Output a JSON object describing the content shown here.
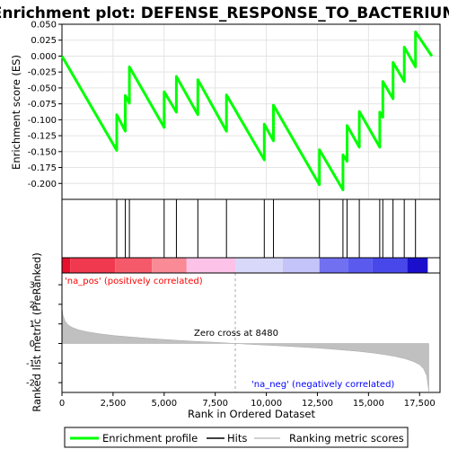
{
  "chart_data": {
    "type": "line",
    "title": "Enrichment plot: DEFENSE_RESPONSE_TO_BACTERIUM",
    "colors": {
      "enrichment_line": "#00ff00",
      "hits": "#000000",
      "ranking_fill": "#c0c0c0",
      "pos_annotation": "#ff0000",
      "neg_annotation": "#0000ff",
      "zero_cross_line": "#aaaaaa"
    },
    "xlabel": "Rank in Ordered Dataset",
    "xlim": [
      0,
      18500
    ],
    "x_ticks": [
      0,
      2500,
      5000,
      7500,
      10000,
      12500,
      15000,
      17500
    ],
    "x_tick_labels": [
      "0",
      "2,500",
      "5,000",
      "7,500",
      "10,000",
      "12,500",
      "15,000",
      "17,500"
    ],
    "es_panel": {
      "ylabel": "Enrichment score (ES)",
      "ylim": [
        -0.225,
        0.05
      ],
      "y_ticks": [
        0.05,
        0.025,
        0.0,
        -0.025,
        -0.05,
        -0.075,
        -0.1,
        -0.125,
        -0.15,
        -0.175,
        -0.2
      ],
      "y_tick_labels": [
        "0.050",
        "0.025",
        "0.000",
        "-0.025",
        "-0.050",
        "-0.075",
        "-0.100",
        "-0.125",
        "-0.150",
        "-0.175",
        "-0.200"
      ],
      "grid": true,
      "series": [
        {
          "name": "Enrichment profile",
          "x": [
            0,
            2680,
            2680,
            3100,
            3100,
            3300,
            3300,
            5000,
            5000,
            5600,
            5600,
            6650,
            6650,
            8050,
            8050,
            9900,
            9900,
            10350,
            10350,
            12600,
            12600,
            13750,
            13750,
            13950,
            13950,
            14550,
            14550,
            15550,
            15550,
            15700,
            15700,
            16200,
            16200,
            16750,
            16750,
            17300,
            17300,
            18100
          ],
          "y": [
            0.0,
            -0.148,
            -0.092,
            -0.118,
            -0.062,
            -0.074,
            -0.017,
            -0.112,
            -0.056,
            -0.088,
            -0.032,
            -0.092,
            -0.037,
            -0.118,
            -0.061,
            -0.163,
            -0.107,
            -0.133,
            -0.077,
            -0.202,
            -0.147,
            -0.21,
            -0.155,
            -0.165,
            -0.109,
            -0.143,
            -0.087,
            -0.143,
            -0.088,
            -0.096,
            -0.04,
            -0.067,
            -0.01,
            -0.04,
            0.014,
            -0.017,
            0.038,
            0.0
          ]
        }
      ]
    },
    "hits": [
      2680,
      3100,
      3300,
      5000,
      5600,
      6650,
      8050,
      9900,
      10350,
      12600,
      13750,
      13950,
      14550,
      15550,
      15700,
      16200,
      16750,
      17300
    ],
    "color_bar": {
      "segments": [
        {
          "end": 400,
          "color": "#e8112d"
        },
        {
          "end": 2600,
          "color": "#f0394f"
        },
        {
          "end": 4400,
          "color": "#f55a6b"
        },
        {
          "end": 6100,
          "color": "#f98a96"
        },
        {
          "end": 8500,
          "color": "#fcc2e8"
        },
        {
          "end": 10800,
          "color": "#d8d8fa"
        },
        {
          "end": 12600,
          "color": "#c4c4fa"
        },
        {
          "end": 14000,
          "color": "#7070f0"
        },
        {
          "end": 15200,
          "color": "#5a5aef"
        },
        {
          "end": 16900,
          "color": "#4848ea"
        },
        {
          "end": 17900,
          "color": "#1a10cc"
        }
      ]
    },
    "rank_panel": {
      "ylabel": "Ranked list metric (PreRanked)",
      "ylim": [
        -2.5,
        3.6
      ],
      "y_ticks": [
        3,
        2,
        1,
        0,
        -1,
        -2
      ],
      "y_tick_labels": [
        "3",
        "2",
        "1",
        "0",
        "-1",
        "-2"
      ],
      "metric_x": [
        0,
        50,
        150,
        300,
        500,
        800,
        1200,
        1800,
        2600,
        3500,
        4500,
        5500,
        6500,
        7500,
        8480,
        9500,
        10500,
        11500,
        12500,
        13500,
        14500,
        15200,
        15800,
        16300,
        16800,
        17200,
        17500,
        17700,
        17850,
        17950
      ],
      "metric_y": [
        1.85,
        1.45,
        1.15,
        0.95,
        0.82,
        0.7,
        0.6,
        0.5,
        0.4,
        0.32,
        0.24,
        0.17,
        0.11,
        0.06,
        0.0,
        -0.06,
        -0.11,
        -0.17,
        -0.23,
        -0.31,
        -0.4,
        -0.48,
        -0.57,
        -0.66,
        -0.78,
        -0.92,
        -1.08,
        -1.3,
        -1.65,
        -2.45
      ],
      "zero_cross_label": "Zero cross at 8480",
      "zero_cross": 8480,
      "pos_label": "'na_pos' (positively correlated)",
      "neg_label": "'na_neg' (negatively correlated)"
    },
    "legend": {
      "placement": "bottom",
      "entries": [
        "Enrichment profile",
        "Hits",
        "Ranking metric scores"
      ]
    }
  }
}
